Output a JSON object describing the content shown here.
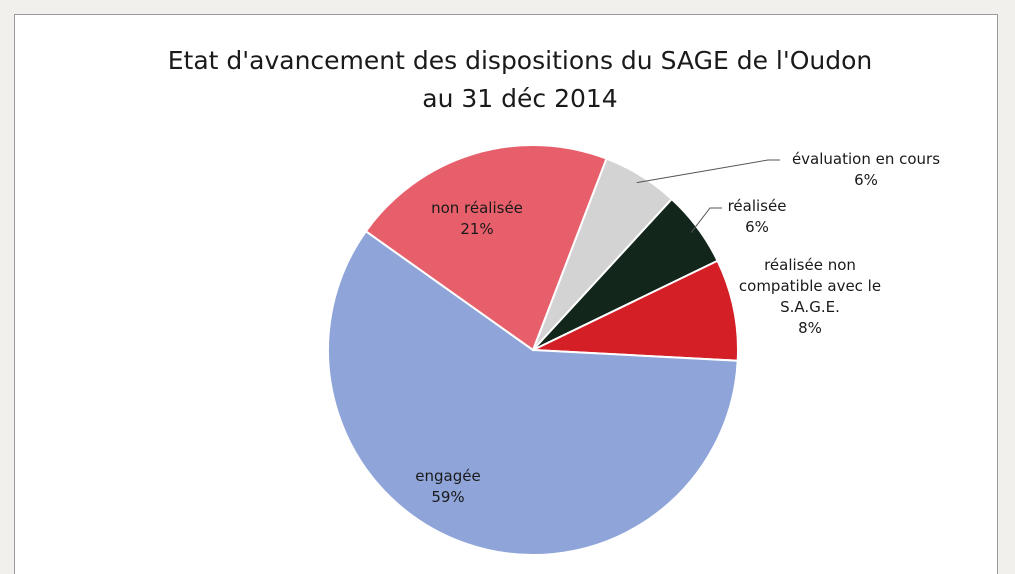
{
  "chart_data": {
    "type": "pie",
    "title": "Etat d'avancement des dispositions du SAGE de l'Oudon au 31 déc 2014",
    "categories": [
      "évaluation en cours",
      "réalisée",
      "réalisée non compatible avec le S.A.G.E.",
      "engagée",
      "non réalisée"
    ],
    "values": [
      6,
      6,
      8,
      59,
      21
    ],
    "value_labels": [
      "6%",
      "6%",
      "8%",
      "59%",
      "21%"
    ],
    "colors": [
      "#d3d3d3",
      "#12261b",
      "#d51f27",
      "#8fa5d9",
      "#e75f6a"
    ]
  }
}
